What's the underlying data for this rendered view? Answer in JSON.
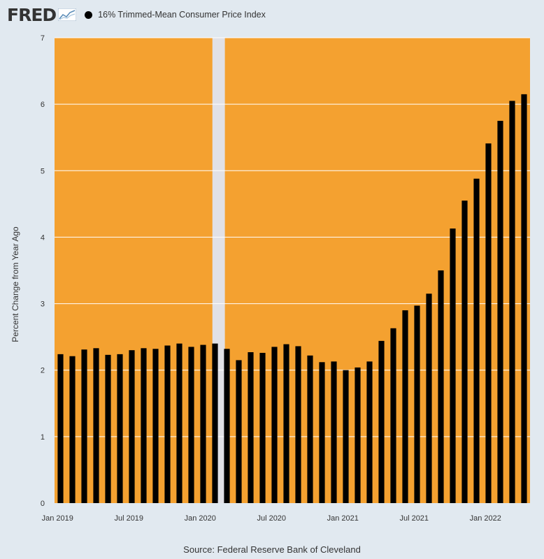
{
  "header": {
    "logo_text": "FRED",
    "logo_mark_icon": "fred-chart-mark-icon"
  },
  "legend": {
    "label": "16% Trimmed-Mean Consumer Price Index",
    "color": "#000000"
  },
  "colors": {
    "plot_background": "#f4a130",
    "page_background": "#e1e9f0",
    "recession_band": "#e1e1e6",
    "bar_color": "#000000",
    "gridline": "#ffffff"
  },
  "chart_data": {
    "type": "bar",
    "title": "16% Trimmed-Mean Consumer Price Index",
    "xlabel": "",
    "ylabel": "Percent Change from Year Ago",
    "ylim": [
      0,
      7
    ],
    "yticks": [
      0,
      1,
      2,
      3,
      4,
      5,
      6,
      7
    ],
    "grid": true,
    "source": "Source: Federal Reserve Bank of Cleveland",
    "x_tick_labels": [
      {
        "label": "Jan 2019",
        "index": 0
      },
      {
        "label": "Jul 2019",
        "index": 6
      },
      {
        "label": "Jan 2020",
        "index": 12
      },
      {
        "label": "Jul 2020",
        "index": 18
      },
      {
        "label": "Jan 2021",
        "index": 24
      },
      {
        "label": "Jul 2021",
        "index": 30
      },
      {
        "label": "Jan 2022",
        "index": 36
      }
    ],
    "recession": {
      "start_index": 13,
      "end_index": 14
    },
    "categories": [
      "2019-01",
      "2019-02",
      "2019-03",
      "2019-04",
      "2019-05",
      "2019-06",
      "2019-07",
      "2019-08",
      "2019-09",
      "2019-10",
      "2019-11",
      "2019-12",
      "2020-01",
      "2020-02",
      "2020-03",
      "2020-04",
      "2020-05",
      "2020-06",
      "2020-07",
      "2020-08",
      "2020-09",
      "2020-10",
      "2020-11",
      "2020-12",
      "2021-01",
      "2021-02",
      "2021-03",
      "2021-04",
      "2021-05",
      "2021-06",
      "2021-07",
      "2021-08",
      "2021-09",
      "2021-10",
      "2021-11",
      "2021-12",
      "2022-01",
      "2022-02",
      "2022-03",
      "2022-04"
    ],
    "series": [
      {
        "name": "16% Trimmed-Mean Consumer Price Index",
        "values": [
          2.24,
          2.21,
          2.31,
          2.33,
          2.23,
          2.24,
          2.3,
          2.33,
          2.32,
          2.37,
          2.4,
          2.35,
          2.38,
          2.4,
          2.32,
          2.15,
          2.27,
          2.26,
          2.35,
          2.39,
          2.36,
          2.22,
          2.12,
          2.13,
          2.0,
          2.04,
          2.13,
          2.44,
          2.63,
          2.9,
          2.97,
          3.15,
          3.5,
          4.13,
          4.55,
          4.88,
          5.41,
          5.75,
          6.05,
          6.15
        ]
      }
    ]
  }
}
